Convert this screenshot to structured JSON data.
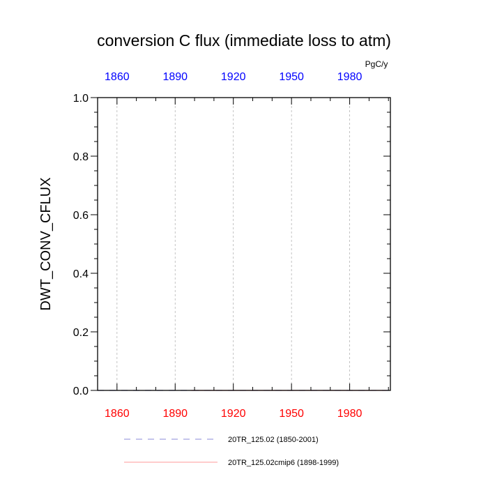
{
  "chart_data": {
    "type": "line",
    "title": "conversion C flux (immediate loss to atm)",
    "units": "PgC/y",
    "ylabel": "DWT_CONV_CFLUX",
    "xlabel": "",
    "xlim": [
      1850,
      2001
    ],
    "ylim": [
      0,
      1
    ],
    "yticks": [
      0.0,
      0.2,
      0.4,
      0.6,
      0.8,
      1.0
    ],
    "ytick_labels": [
      "0.0",
      "0.2",
      "0.4",
      "0.6",
      "0.8",
      "1.0"
    ],
    "xticks": [
      1860,
      1890,
      1920,
      1950,
      1980
    ],
    "xtick_labels_bottom": [
      "1860",
      "1890",
      "1920",
      "1950",
      "1980"
    ],
    "xtick_labels_top": [
      "1860",
      "1890",
      "1920",
      "1950",
      "1980"
    ],
    "grid": "vertical dashed at x ticks",
    "legend_placement": "bottom",
    "colors": {
      "bottom_axis_labels": "#ff0000",
      "top_axis_labels": "#0000ff",
      "series_1": "#8a8ad8",
      "series_2": "#ff9a9a",
      "grid": "#b4b4b4"
    },
    "series": [
      {
        "name": "20TR_125.02 (1850-2001)",
        "style": "dashed",
        "x": [
          1850,
          2001
        ],
        "y": [
          0,
          0
        ]
      },
      {
        "name": "20TR_125.02cmip6 (1898-1999)",
        "style": "solid",
        "x": [
          1898,
          1999
        ],
        "y": [
          0,
          0
        ]
      }
    ]
  }
}
